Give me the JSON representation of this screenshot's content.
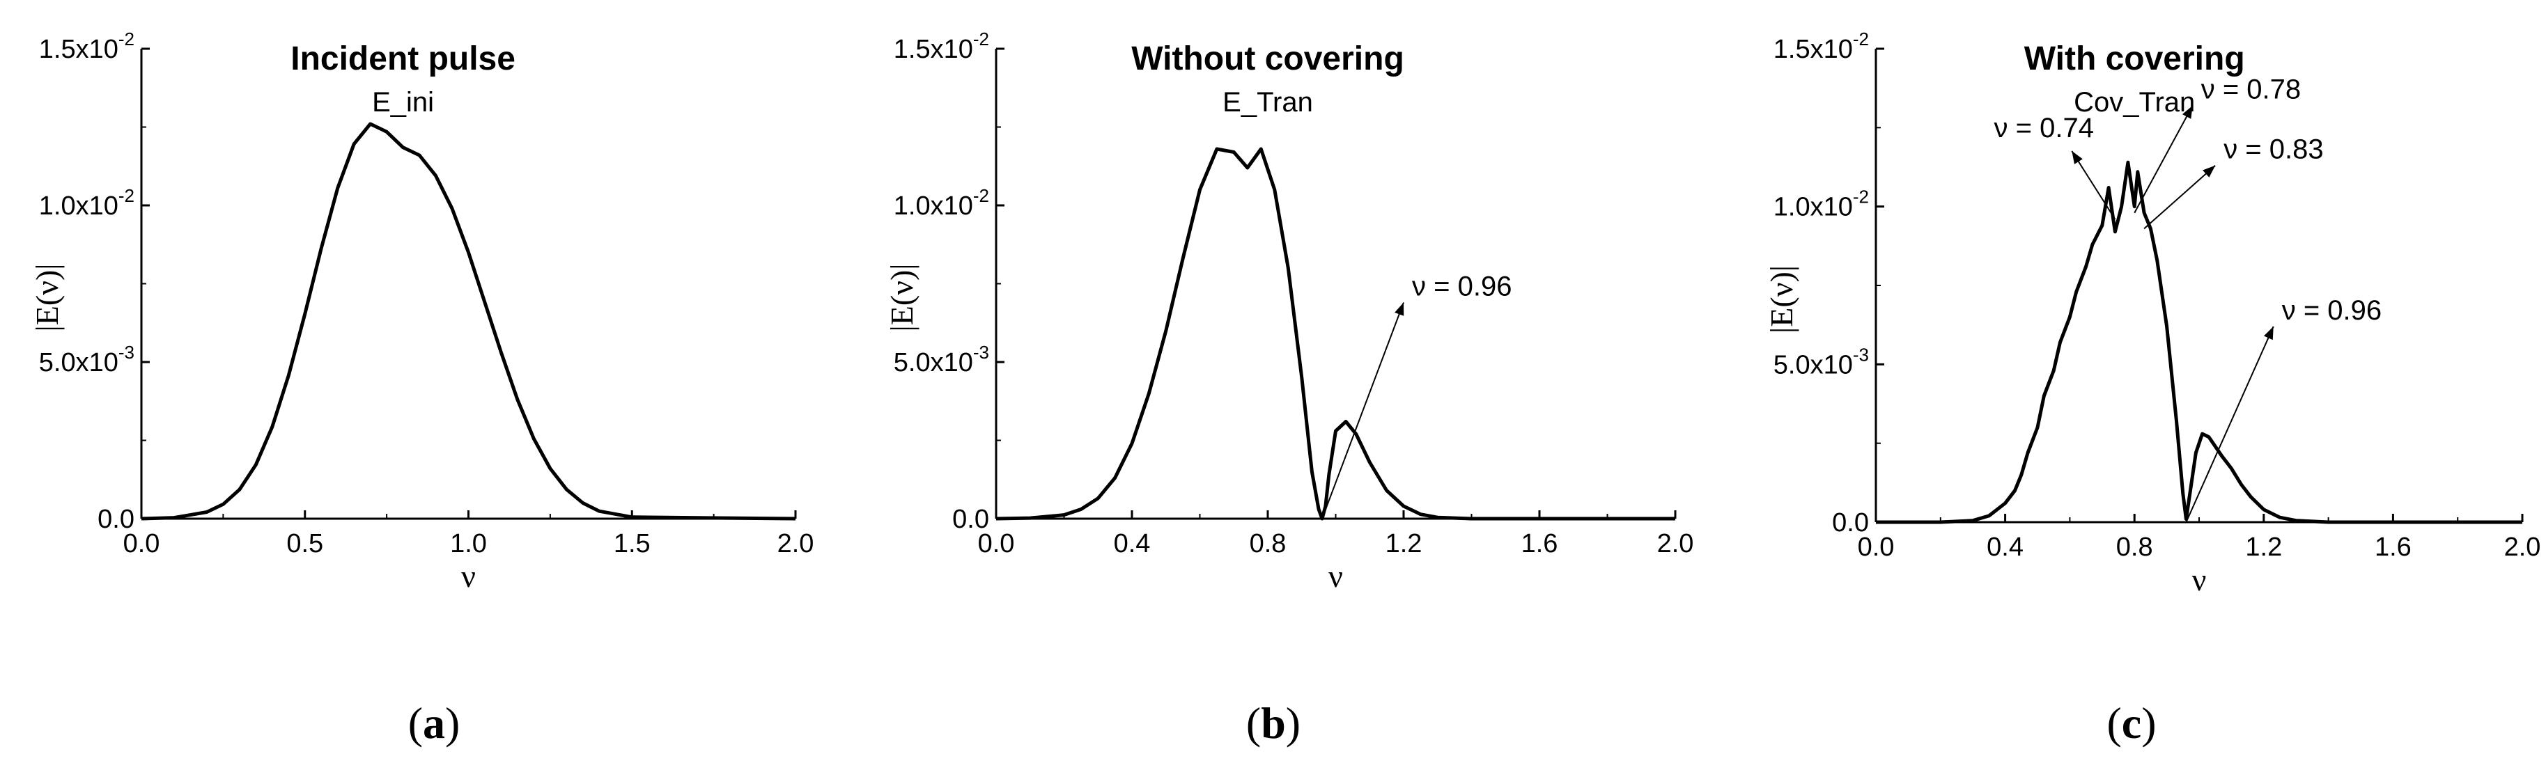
{
  "figure": {
    "panels": [
      {
        "id": "a",
        "caption_open": "(",
        "caption_letter": "a",
        "caption_close": ")"
      },
      {
        "id": "b",
        "caption_open": "(",
        "caption_letter": "b",
        "caption_close": ")"
      },
      {
        "id": "c",
        "caption_open": "(",
        "caption_letter": "c",
        "caption_close": ")"
      }
    ]
  },
  "chart_data": [
    {
      "type": "line",
      "title": "Incident pulse",
      "series": [
        {
          "name": "E_ini",
          "x": [
            0.0,
            0.1,
            0.2,
            0.25,
            0.3,
            0.35,
            0.4,
            0.45,
            0.5,
            0.55,
            0.6,
            0.65,
            0.7,
            0.75,
            0.8,
            0.85,
            0.9,
            0.95,
            1.0,
            1.05,
            1.1,
            1.15,
            1.2,
            1.25,
            1.3,
            1.35,
            1.4,
            1.5,
            2.0
          ],
          "y": [
            0.0,
            3e-05,
            0.00021,
            0.00046,
            0.00093,
            0.00172,
            0.00293,
            0.00457,
            0.00654,
            0.00863,
            0.01055,
            0.01196,
            0.0126,
            0.01235,
            0.01185,
            0.0116,
            0.01095,
            0.0099,
            0.0085,
            0.0069,
            0.0053,
            0.0038,
            0.00255,
            0.0016,
            0.00093,
            0.0005,
            0.00024,
            5e-05,
            0.0
          ]
        }
      ],
      "xlabel": "ν",
      "ylabel": "|E(ν)|",
      "xlim": [
        0.0,
        2.0
      ],
      "ylim": [
        0.0,
        0.015
      ],
      "xticks": [
        "0.0",
        "0.5",
        "1.0",
        "1.5",
        "2.0"
      ],
      "yticks": [
        {
          "mant": "0.0",
          "exp": ""
        },
        {
          "mant": "5.0x10",
          "exp": "-3"
        },
        {
          "mant": "1.0x10",
          "exp": "-2"
        },
        {
          "mant": "1.5x10",
          "exp": "-2"
        }
      ],
      "annotations": []
    },
    {
      "type": "line",
      "title": "Without covering",
      "series": [
        {
          "name": "E_Tran",
          "x": [
            0.0,
            0.1,
            0.2,
            0.25,
            0.3,
            0.35,
            0.4,
            0.45,
            0.5,
            0.55,
            0.6,
            0.65,
            0.7,
            0.74,
            0.78,
            0.82,
            0.86,
            0.9,
            0.93,
            0.95,
            0.96,
            0.97,
            0.98,
            1.0,
            1.03,
            1.06,
            1.1,
            1.15,
            1.2,
            1.25,
            1.3,
            1.4,
            1.6,
            2.0
          ],
          "y": [
            0.0,
            2e-05,
            0.00012,
            0.0003,
            0.00065,
            0.0013,
            0.0024,
            0.004,
            0.006,
            0.0083,
            0.0105,
            0.0118,
            0.0117,
            0.0112,
            0.0118,
            0.0105,
            0.008,
            0.0045,
            0.0015,
            0.0003,
            0.0,
            0.0004,
            0.0014,
            0.0028,
            0.0031,
            0.0027,
            0.0018,
            0.0009,
            0.0004,
            0.00014,
            4e-05,
            0.0,
            0.0,
            0.0
          ]
        }
      ],
      "xlabel": "ν",
      "ylabel": "|E(ν)|",
      "xlim": [
        0.0,
        2.0
      ],
      "ylim": [
        0.0,
        0.015
      ],
      "xticks": [
        "0.0",
        "0.4",
        "0.8",
        "1.2",
        "1.6",
        "2.0"
      ],
      "yticks": [
        {
          "mant": "0.0",
          "exp": ""
        },
        {
          "mant": "5.0x10",
          "exp": "-3"
        },
        {
          "mant": "1.0x10",
          "exp": "-2"
        },
        {
          "mant": "1.5x10",
          "exp": "-2"
        }
      ],
      "annotations": [
        {
          "label": "ν = 0.96",
          "x": 0.96,
          "y": 0.0,
          "text_x": 1.2,
          "text_y": 0.0069
        }
      ]
    },
    {
      "type": "line",
      "title": "With covering",
      "series": [
        {
          "name": "Cov_Tran",
          "x": [
            0.0,
            0.2,
            0.3,
            0.35,
            0.4,
            0.43,
            0.45,
            0.47,
            0.5,
            0.52,
            0.55,
            0.57,
            0.6,
            0.62,
            0.65,
            0.67,
            0.7,
            0.72,
            0.74,
            0.76,
            0.78,
            0.8,
            0.81,
            0.83,
            0.85,
            0.87,
            0.9,
            0.93,
            0.95,
            0.96,
            0.97,
            0.99,
            1.01,
            1.03,
            1.05,
            1.07,
            1.1,
            1.13,
            1.16,
            1.2,
            1.25,
            1.3,
            1.4,
            2.0
          ],
          "y": [
            0.0,
            0.0,
            5e-05,
            0.0002,
            0.0006,
            0.001,
            0.0015,
            0.0022,
            0.003,
            0.004,
            0.0048,
            0.0057,
            0.0065,
            0.0073,
            0.0081,
            0.0088,
            0.0094,
            0.0106,
            0.0092,
            0.01,
            0.0114,
            0.01,
            0.0111,
            0.0098,
            0.0093,
            0.0083,
            0.0062,
            0.0032,
            0.0009,
            0.0001,
            0.0008,
            0.0022,
            0.0028,
            0.0027,
            0.0024,
            0.0021,
            0.0017,
            0.0012,
            0.0008,
            0.0004,
            0.00015,
            5e-05,
            0.0,
            0.0
          ]
        }
      ],
      "xlabel": "ν",
      "ylabel": "|E(ν)|",
      "xlim": [
        0.0,
        2.0
      ],
      "ylim": [
        0.0,
        0.015
      ],
      "xticks": [
        "0.0",
        "0.4",
        "0.8",
        "1.2",
        "1.6",
        "2.0"
      ],
      "yticks": [
        {
          "mant": "0.0",
          "exp": ""
        },
        {
          "mant": "5.0x10",
          "exp": "-3"
        },
        {
          "mant": "1.0x10",
          "exp": "-2"
        },
        {
          "mant": "1.5x10",
          "exp": "-2"
        }
      ],
      "annotations": [
        {
          "label": "ν = 0.74",
          "x": 0.74,
          "y": 0.0096,
          "text_x": 0.52,
          "text_y": 0.0122
        },
        {
          "label": "ν = 0.78",
          "x": 0.8,
          "y": 0.0098,
          "text_x": 0.98,
          "text_y": 0.0132
        },
        {
          "label": "ν = 0.83",
          "x": 0.83,
          "y": 0.0093,
          "text_x": 1.05,
          "text_y": 0.0113
        },
        {
          "label": "ν = 0.96",
          "x": 0.96,
          "y": 0.0,
          "text_x": 1.23,
          "text_y": 0.0062
        }
      ]
    }
  ]
}
